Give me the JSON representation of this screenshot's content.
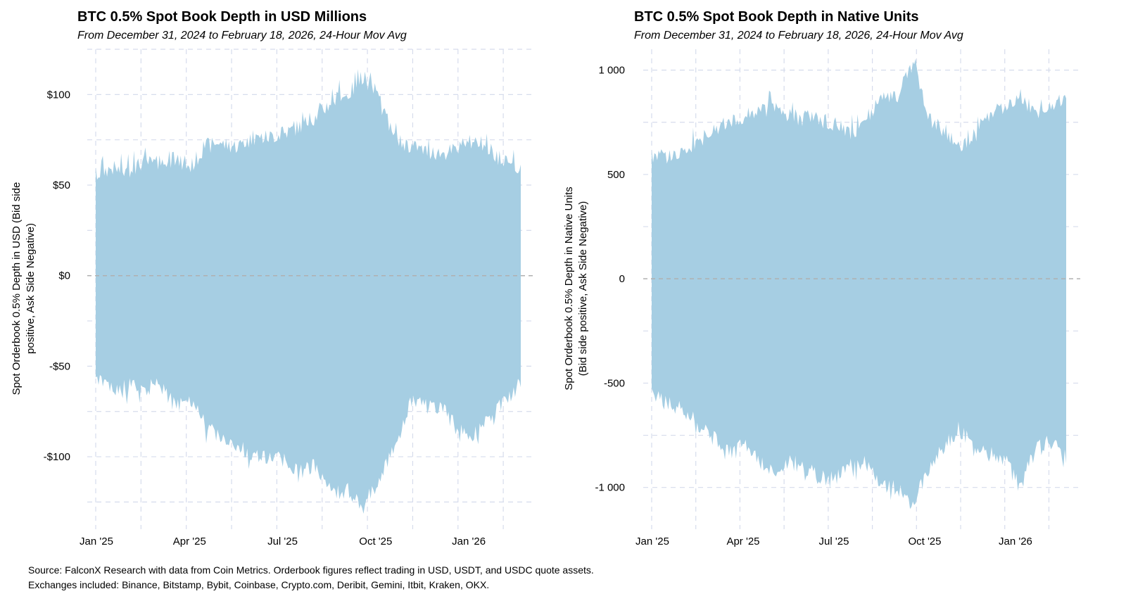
{
  "chart_data": [
    {
      "type": "area",
      "title": "BTC 0.5% Spot Book Depth in USD Millions",
      "subtitle": "From December 31, 2024 to February 18, 2026, 24-Hour Mov Avg",
      "xlabel": "",
      "ylabel_lines": [
        "Spot Orderbook 0.5% Depth in USD (Bid side",
        "positive, Ask Side Negative)"
      ],
      "x_ticks": [
        "Jan '25",
        "Apr '25",
        "Jul '25",
        "Oct '25",
        "Jan '26"
      ],
      "y_ticks": [
        {
          "value": 100,
          "label": "$100"
        },
        {
          "value": 50,
          "label": "$50"
        },
        {
          "value": 0,
          "label": "$0"
        },
        {
          "value": -50,
          "label": "-$50"
        },
        {
          "value": -100,
          "label": "-$100"
        }
      ],
      "ylim": [
        -140,
        125
      ],
      "x": [
        "Dec 31 '24",
        "Jan 15 '25",
        "Feb 1 '25",
        "Feb 15 '25",
        "Mar 1 '25",
        "Mar 15 '25",
        "Apr 1 '25",
        "Apr 15 '25",
        "May 1 '25",
        "May 15 '25",
        "Jun 1 '25",
        "Jun 15 '25",
        "Jul 1 '25",
        "Jul 15 '25",
        "Aug 1 '25",
        "Aug 15 '25",
        "Sep 1 '25",
        "Sep 15 '25",
        "Oct 1 '25",
        "Oct 15 '25",
        "Nov 1 '25",
        "Nov 15 '25",
        "Dec 1 '25",
        "Dec 15 '25",
        "Jan 1 '26",
        "Jan 15 '26",
        "Feb 1 '26",
        "Feb 18 '26"
      ],
      "series": [
        {
          "name": "Bid side",
          "values": [
            56,
            60,
            57,
            63,
            62,
            64,
            60,
            72,
            73,
            72,
            76,
            77,
            79,
            83,
            88,
            97,
            100,
            110,
            97,
            75,
            72,
            69,
            68,
            70,
            75,
            70,
            62,
            58
          ]
        },
        {
          "name": "Ask side",
          "values": [
            -55,
            -62,
            -61,
            -63,
            -60,
            -70,
            -68,
            -83,
            -90,
            -95,
            -98,
            -100,
            -102,
            -108,
            -105,
            -120,
            -118,
            -128,
            -112,
            -92,
            -70,
            -72,
            -73,
            -85,
            -88,
            -80,
            -68,
            -60
          ]
        }
      ]
    },
    {
      "type": "area",
      "title": "BTC 0.5% Spot Book Depth in Native Units",
      "subtitle": "From December 31, 2024 to February 18, 2026, 24-Hour Mov Avg",
      "xlabel": "",
      "ylabel_lines": [
        "Spot Orderbook 0.5% Depth in Native Units",
        "(Bid side positive, Ask Side Negative)"
      ],
      "x_ticks": [
        "Jan '25",
        "Apr '25",
        "Jul '25",
        "Oct '25",
        "Jan '26"
      ],
      "y_ticks": [
        {
          "value": 1000,
          "label": "1 000"
        },
        {
          "value": 500,
          "label": "500"
        },
        {
          "value": 0,
          "label": "0"
        },
        {
          "value": -500,
          "label": "-500"
        },
        {
          "value": -1000,
          "label": "-1 000"
        }
      ],
      "ylim": [
        -1200,
        1100
      ],
      "x": [
        "Dec 31 '24",
        "Jan 15 '25",
        "Feb 1 '25",
        "Feb 15 '25",
        "Mar 1 '25",
        "Mar 15 '25",
        "Apr 1 '25",
        "Apr 15 '25",
        "May 1 '25",
        "May 15 '25",
        "Jun 1 '25",
        "Jun 15 '25",
        "Jul 1 '25",
        "Jul 15 '25",
        "Aug 1 '25",
        "Aug 15 '25",
        "Sep 1 '25",
        "Sep 15 '25",
        "Oct 1 '25",
        "Oct 15 '25",
        "Nov 1 '25",
        "Nov 15 '25",
        "Dec 1 '25",
        "Dec 15 '25",
        "Jan 1 '26",
        "Jan 15 '26",
        "Feb 1 '26",
        "Feb 18 '26"
      ],
      "series": [
        {
          "name": "Bid side",
          "values": [
            590,
            580,
            600,
            660,
            700,
            760,
            780,
            800,
            830,
            780,
            770,
            760,
            740,
            700,
            760,
            880,
            860,
            1040,
            780,
            700,
            640,
            680,
            780,
            820,
            860,
            800,
            810,
            880
          ]
        },
        {
          "name": "Ask side",
          "values": [
            -560,
            -600,
            -620,
            -700,
            -760,
            -820,
            -800,
            -870,
            -930,
            -880,
            -900,
            -960,
            -950,
            -900,
            -880,
            -1000,
            -1000,
            -1080,
            -920,
            -800,
            -720,
            -800,
            -820,
            -860,
            -1000,
            -820,
            -780,
            -860
          ]
        }
      ]
    }
  ],
  "footer": {
    "source_line": "Source: FalconX Research with data from Coin Metrics. Orderbook figures reflect trading in USD, USDT, and USDC quote assets.",
    "exchanges_line": "Exchanges included: Binance, Bitstamp, Bybit, Coinbase, Crypto.com, Deribit, Gemini, Itbit, Kraken, OKX."
  },
  "colors": {
    "area": "#a6cee3",
    "grid": "#d6dcec",
    "zero_line": "#b0b0b0",
    "text": "#000000"
  }
}
